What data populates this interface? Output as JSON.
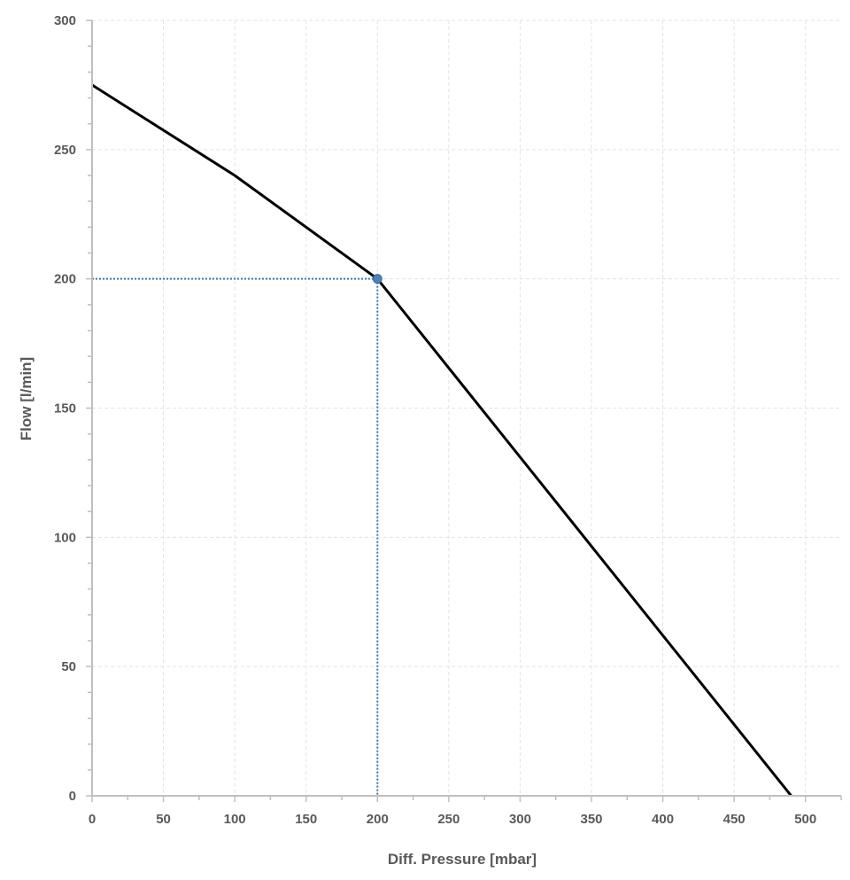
{
  "chart_data": {
    "type": "line",
    "title": "",
    "xlabel": "Diff. Pressure [mbar]",
    "ylabel": "Flow [l/min]",
    "xlim": [
      0,
      525
    ],
    "ylim": [
      0,
      300
    ],
    "x_ticks": [
      0,
      50,
      100,
      150,
      200,
      250,
      300,
      350,
      400,
      450,
      500
    ],
    "y_ticks": [
      0,
      50,
      100,
      150,
      200,
      250,
      300
    ],
    "grid": true,
    "series": [
      {
        "values": [
          {
            "x": 0,
            "y": 275
          },
          {
            "x": 100,
            "y": 240
          },
          {
            "x": 200,
            "y": 200
          },
          {
            "x": 490,
            "y": 0
          }
        ],
        "color": "#000000"
      }
    ],
    "operating_point": {
      "x": 200,
      "y": 200,
      "color": "#4f81bd"
    }
  }
}
